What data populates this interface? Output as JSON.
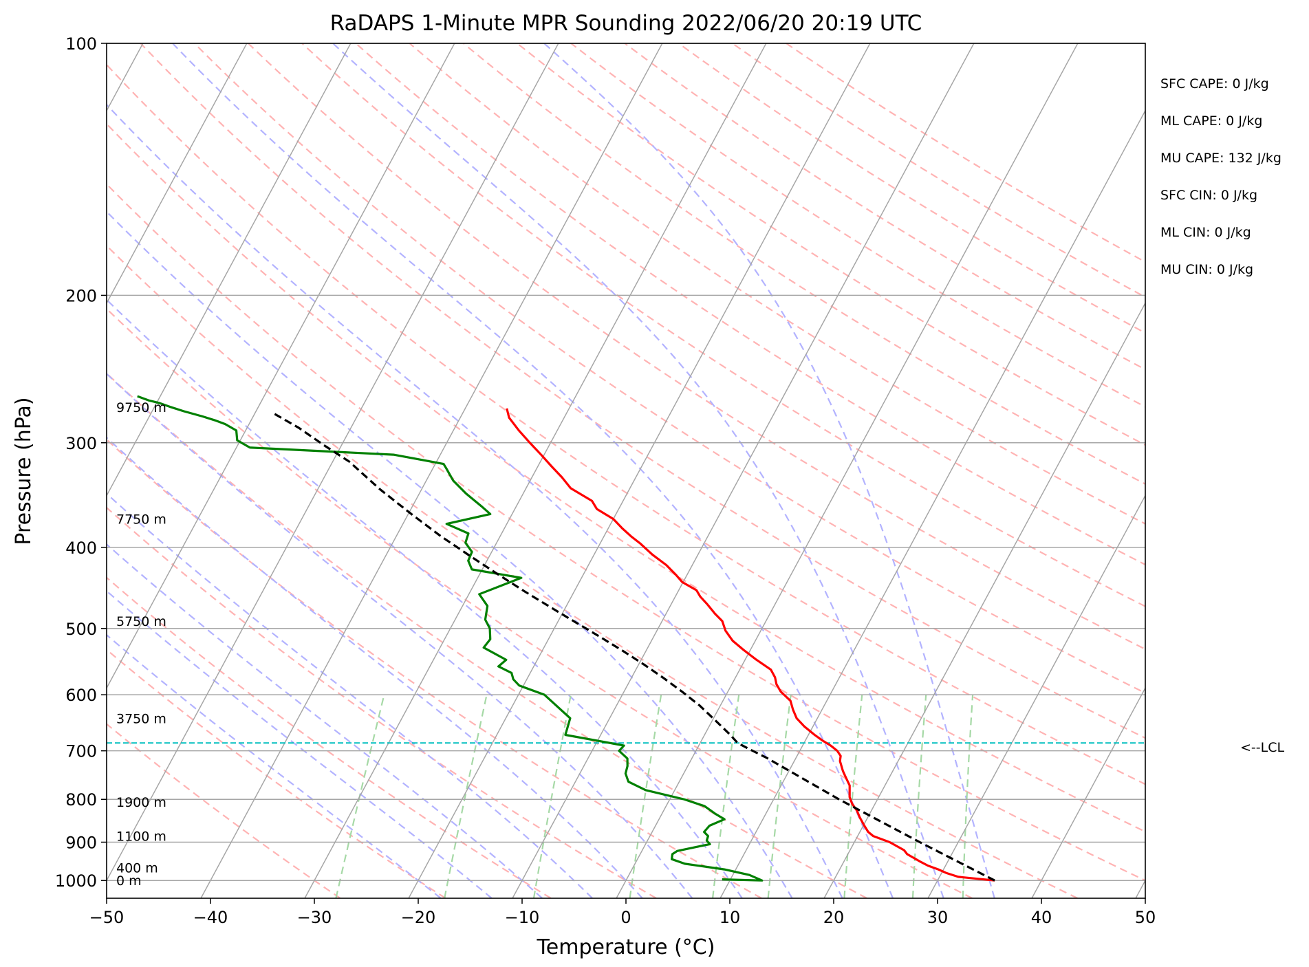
{
  "chart_data": {
    "type": "line",
    "title": "RaDAPS 1-Minute MPR Sounding 2022/06/20 20:19 UTC",
    "xlabel": "Temperature (°C)",
    "ylabel": "Pressure (hPa)",
    "xlim": [
      -50,
      50
    ],
    "ylim": [
      1050,
      100
    ],
    "y_scale": "log",
    "x_ticks": [
      -50,
      -40,
      -30,
      -20,
      -10,
      0,
      10,
      20,
      30,
      40,
      50
    ],
    "x_tick_labels": [
      "−50",
      "−40",
      "−30",
      "−20",
      "−10",
      "0",
      "10",
      "20",
      "30",
      "40",
      "50"
    ],
    "y_ticks": [
      100,
      200,
      300,
      400,
      500,
      600,
      700,
      800,
      900,
      1000
    ],
    "y_tick_labels": [
      "100",
      "200",
      "300",
      "400",
      "500",
      "600",
      "700",
      "800",
      "900",
      "1000"
    ],
    "grid": true,
    "skew_per_decade": 43.5,
    "series": [
      {
        "role": "temperature",
        "color": "#ff0000",
        "points": [
          [
            35.5,
            1000
          ],
          [
            31.8,
            990
          ],
          [
            30.5,
            980
          ],
          [
            29.5,
            970
          ],
          [
            28.3,
            960
          ],
          [
            27.4,
            950
          ],
          [
            25.7,
            930
          ],
          [
            25.2,
            920
          ],
          [
            23.4,
            900
          ],
          [
            21.5,
            885
          ],
          [
            20.8,
            875
          ],
          [
            20.1,
            860
          ],
          [
            19.2,
            840
          ],
          [
            18.6,
            825
          ],
          [
            17.8,
            810
          ],
          [
            17.2,
            795
          ],
          [
            16.6,
            770
          ],
          [
            15.9,
            755
          ],
          [
            15.2,
            740
          ],
          [
            14.4,
            720
          ],
          [
            14.2,
            710
          ],
          [
            13.6,
            700
          ],
          [
            12.7,
            690
          ],
          [
            11.6,
            680
          ],
          [
            10.6,
            670
          ],
          [
            9.2,
            655
          ],
          [
            8.0,
            640
          ],
          [
            7.2,
            625
          ],
          [
            6.5,
            610
          ],
          [
            5.1,
            595
          ],
          [
            4.3,
            583
          ],
          [
            3.8,
            572
          ],
          [
            3.0,
            560
          ],
          [
            1.1,
            545
          ],
          [
            -0.7,
            530
          ],
          [
            -2.2,
            517
          ],
          [
            -3.4,
            503
          ],
          [
            -4.2,
            490
          ],
          [
            -5.3,
            480
          ],
          [
            -6.5,
            468
          ],
          [
            -7.6,
            458
          ],
          [
            -8.3,
            450
          ],
          [
            -10.1,
            440
          ],
          [
            -11.0,
            432
          ],
          [
            -12.5,
            420
          ],
          [
            -14.4,
            408
          ],
          [
            -16.1,
            396
          ],
          [
            -17.4,
            388
          ],
          [
            -18.6,
            380
          ],
          [
            -20.0,
            370
          ],
          [
            -22.1,
            360
          ],
          [
            -23.0,
            352
          ],
          [
            -25.7,
            340
          ],
          [
            -27.1,
            330
          ],
          [
            -28.7,
            320
          ],
          [
            -30.3,
            310
          ],
          [
            -32.0,
            300
          ],
          [
            -33.7,
            290
          ],
          [
            -35.3,
            280
          ],
          [
            -36.0,
            273
          ]
        ]
      },
      {
        "role": "dewpoint",
        "color": "#008000",
        "points": [
          [
            9.2,
            997
          ],
          [
            13.1,
            1000
          ],
          [
            11.6,
            985
          ],
          [
            8.9,
            970
          ],
          [
            4.8,
            955
          ],
          [
            3.3,
            943
          ],
          [
            3.1,
            930
          ],
          [
            3.4,
            922
          ],
          [
            5.0,
            912
          ],
          [
            6.2,
            905
          ],
          [
            5.7,
            896
          ],
          [
            5.6,
            885
          ],
          [
            5.0,
            875
          ],
          [
            5.2,
            860
          ],
          [
            6.3,
            845
          ],
          [
            5.1,
            832
          ],
          [
            3.7,
            815
          ],
          [
            1.4,
            800
          ],
          [
            -2.8,
            780
          ],
          [
            -4.9,
            762
          ],
          [
            -5.6,
            745
          ],
          [
            -5.8,
            730
          ],
          [
            -6.2,
            715
          ],
          [
            -7.4,
            700
          ],
          [
            -7.2,
            690
          ],
          [
            -13.4,
            670
          ],
          [
            -13.8,
            640
          ],
          [
            -17.5,
            600
          ],
          [
            -20.4,
            585
          ],
          [
            -21.3,
            575
          ],
          [
            -21.8,
            565
          ],
          [
            -23.4,
            555
          ],
          [
            -23.0,
            545
          ],
          [
            -25.8,
            527
          ],
          [
            -25.6,
            515
          ],
          [
            -26.2,
            500
          ],
          [
            -27.1,
            488
          ],
          [
            -27.6,
            470
          ],
          [
            -29.0,
            455
          ],
          [
            -25.8,
            435
          ],
          [
            -31.0,
            425
          ],
          [
            -31.8,
            415
          ],
          [
            -31.9,
            405
          ],
          [
            -33.0,
            395
          ],
          [
            -33.2,
            385
          ],
          [
            -35.8,
            375
          ],
          [
            -32.1,
            365
          ],
          [
            -33.4,
            357
          ],
          [
            -35.5,
            345
          ],
          [
            -37.4,
            333
          ],
          [
            -38.7,
            322
          ],
          [
            -39.2,
            318
          ],
          [
            -44.5,
            310
          ],
          [
            -58.7,
            304
          ],
          [
            -60.3,
            298
          ],
          [
            -60.9,
            290
          ],
          [
            -62.3,
            285
          ],
          [
            -63.5,
            282
          ],
          [
            -64.9,
            279
          ],
          [
            -67.0,
            275
          ],
          [
            -68.4,
            272
          ],
          [
            -69.7,
            269
          ],
          [
            -70.9,
            267
          ],
          [
            -72.2,
            264
          ]
        ]
      },
      {
        "role": "parcel",
        "color": "#000000",
        "dashed": true,
        "points": [
          [
            35.5,
            1000
          ],
          [
            26.3,
            900
          ],
          [
            16.3,
            800
          ],
          [
            12.2,
            760
          ],
          [
            7.1,
            713
          ],
          [
            5.2,
            698
          ],
          [
            3.6,
            685
          ],
          [
            2.4,
            669
          ],
          [
            0.3,
            644
          ],
          [
            -2.0,
            618
          ],
          [
            -4.4,
            595
          ],
          [
            -6.9,
            573
          ],
          [
            -9.5,
            552
          ],
          [
            -12.2,
            532
          ],
          [
            -15.1,
            512
          ],
          [
            -18.2,
            492
          ],
          [
            -21.4,
            472
          ],
          [
            -24.7,
            452
          ],
          [
            -28.2,
            431
          ],
          [
            -31.8,
            410
          ],
          [
            -35.7,
            388
          ],
          [
            -39.7,
            365
          ],
          [
            -44.0,
            341
          ],
          [
            -48.4,
            316
          ],
          [
            -51.7,
            302
          ],
          [
            -55.0,
            288
          ],
          [
            -58.4,
            276
          ]
        ]
      }
    ],
    "lcl": {
      "pressure": 685,
      "label": "<--LCL"
    },
    "height_labels": [
      {
        "label": "9750 m",
        "pressure": 272
      },
      {
        "label": "7750 m",
        "pressure": 370
      },
      {
        "label": "5750 m",
        "pressure": 490
      },
      {
        "label": "3750 m",
        "pressure": 640
      },
      {
        "label": "1900 m",
        "pressure": 806
      },
      {
        "label": "1100 m",
        "pressure": 885
      },
      {
        "label": "400 m",
        "pressure": 965
      },
      {
        "label": "0 m",
        "pressure": 1000
      }
    ],
    "stats": [
      "SFC CAPE: 0 J/kg",
      "ML CAPE: 0 J/kg",
      "MU CAPE: 132 J/kg",
      "SFC CIN: 0 J/kg",
      "ML CIN: 0 J/kg",
      "MU CIN: 0 J/kg"
    ],
    "colors": {
      "isotherms": "#a6a6a6",
      "dry_adiabats": "#ffb3b3",
      "moist_adiabats": "#b3b3ff",
      "mixing_ratio": "#a6d9a6",
      "lcl_line": "#00bfbf"
    }
  }
}
